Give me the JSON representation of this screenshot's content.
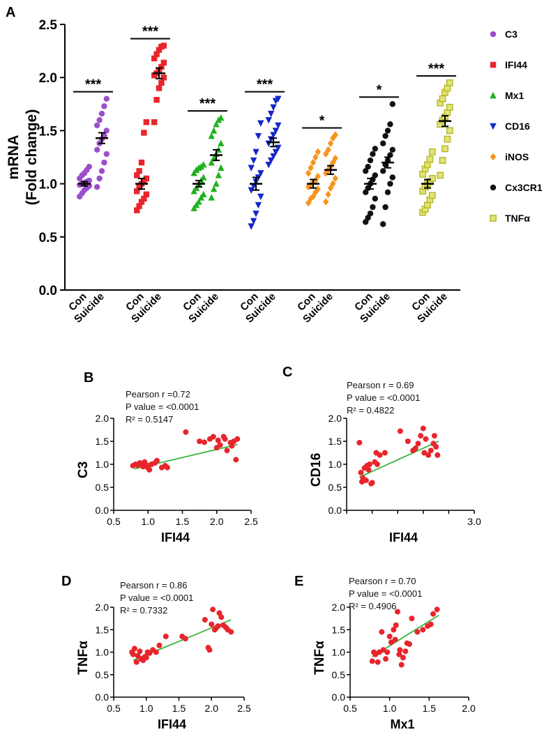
{
  "chart_data": [
    {
      "panel": "A",
      "type": "scatter",
      "title": "",
      "ylabel_line1": "mRNA",
      "ylabel_line2": "(Fold change)",
      "ylim": [
        0,
        2.5
      ],
      "yticks": [
        "0.0",
        "0.5",
        "1.0",
        "1.5",
        "2.0",
        "2.5"
      ],
      "group_labels": [
        "Con",
        "Suicide"
      ],
      "series": [
        {
          "name": "C3",
          "color": "#9b4fc9",
          "marker": "circle",
          "significance": "***",
          "con_mean": 1.0,
          "con_sem": 0.02,
          "suicide_mean": 1.43,
          "suicide_sem": 0.05,
          "con_values": [
            0.88,
            0.91,
            0.94,
            0.96,
            0.98,
            0.99,
            1.0,
            1.01,
            1.02,
            1.03,
            1.05,
            1.08,
            1.1,
            1.13,
            1.16
          ],
          "suicide_values": [
            0.97,
            1.05,
            1.12,
            1.2,
            1.28,
            1.32,
            1.38,
            1.42,
            1.45,
            1.5,
            1.55,
            1.6,
            1.66,
            1.73,
            1.8
          ]
        },
        {
          "name": "IFI44",
          "color": "#e8252b",
          "marker": "square",
          "significance": "***",
          "con_mean": 1.0,
          "con_sem": 0.05,
          "suicide_mean": 2.04,
          "suicide_sem": 0.05,
          "con_values": [
            0.75,
            0.79,
            0.83,
            0.86,
            0.9,
            0.93,
            0.97,
            1.0,
            1.02,
            1.05,
            1.08,
            1.12,
            1.2,
            1.48,
            1.58
          ],
          "suicide_values": [
            1.58,
            1.79,
            1.9,
            1.95,
            2.0,
            2.02,
            2.04,
            2.06,
            2.1,
            2.14,
            2.18,
            2.22,
            2.26,
            2.29,
            2.3
          ]
        },
        {
          "name": "Mx1",
          "color": "#1fb21f",
          "marker": "triangle-up",
          "significance": "***",
          "con_mean": 1.0,
          "con_sem": 0.03,
          "suicide_mean": 1.27,
          "suicide_sem": 0.05,
          "con_values": [
            0.77,
            0.8,
            0.83,
            0.87,
            0.9,
            0.93,
            0.96,
            1.0,
            1.03,
            1.06,
            1.1,
            1.13,
            1.15,
            1.16,
            1.18
          ],
          "suicide_values": [
            0.87,
            0.95,
            1.0,
            1.08,
            1.15,
            1.2,
            1.24,
            1.28,
            1.32,
            1.38,
            1.45,
            1.5,
            1.56,
            1.6,
            1.62
          ]
        },
        {
          "name": "CD16",
          "color": "#1426c8",
          "marker": "triangle-down",
          "significance": "***",
          "con_mean": 1.0,
          "con_sem": 0.06,
          "suicide_mean": 1.39,
          "suicide_sem": 0.04,
          "con_values": [
            0.6,
            0.65,
            0.72,
            0.8,
            0.88,
            0.94,
            0.98,
            1.02,
            1.06,
            1.1,
            1.15,
            1.22,
            1.3,
            1.45,
            1.57
          ],
          "suicide_values": [
            1.18,
            1.22,
            1.26,
            1.3,
            1.34,
            1.38,
            1.42,
            1.46,
            1.5,
            1.55,
            1.6,
            1.66,
            1.72,
            1.78,
            1.8
          ]
        },
        {
          "name": "iNOS",
          "color": "#f7941d",
          "marker": "diamond",
          "significance": "*",
          "con_mean": 1.0,
          "con_sem": 0.04,
          "suicide_mean": 1.13,
          "suicide_sem": 0.04,
          "con_values": [
            0.82,
            0.86,
            0.88,
            0.92,
            0.95,
            0.97,
            0.99,
            1.01,
            1.03,
            1.07,
            1.1,
            1.15,
            1.2,
            1.25,
            1.3
          ],
          "suicide_values": [
            0.83,
            0.9,
            0.96,
            1.0,
            1.05,
            1.1,
            1.13,
            1.16,
            1.2,
            1.24,
            1.28,
            1.32,
            1.38,
            1.43,
            1.46
          ]
        },
        {
          "name": "Cx3CR1",
          "color": "#111111",
          "marker": "circle",
          "significance": "*",
          "con_mean": 1.0,
          "con_sem": 0.05,
          "suicide_mean": 1.2,
          "suicide_sem": 0.05,
          "con_values": [
            0.64,
            0.68,
            0.72,
            0.78,
            0.86,
            0.92,
            0.96,
            1.0,
            1.04,
            1.08,
            1.12,
            1.16,
            1.22,
            1.28,
            1.33
          ],
          "suicide_values": [
            0.62,
            0.78,
            0.92,
            1.0,
            1.06,
            1.12,
            1.18,
            1.22,
            1.27,
            1.32,
            1.38,
            1.45,
            1.5,
            1.56,
            1.75
          ]
        },
        {
          "name": "TNFα",
          "color": "#b5b825",
          "marker": "square-open",
          "significance": "***",
          "con_mean": 1.0,
          "con_sem": 0.04,
          "suicide_mean": 1.59,
          "suicide_sem": 0.05,
          "con_values": [
            0.73,
            0.76,
            0.8,
            0.85,
            0.89,
            0.93,
            0.97,
            1.0,
            1.02,
            1.05,
            1.09,
            1.14,
            1.18,
            1.23,
            1.3
          ],
          "suicide_values": [
            1.08,
            1.22,
            1.33,
            1.42,
            1.5,
            1.56,
            1.6,
            1.63,
            1.67,
            1.72,
            1.76,
            1.8,
            1.86,
            1.9,
            1.95
          ]
        }
      ]
    },
    {
      "panel": "B",
      "type": "scatter",
      "xlabel": "IFI44",
      "ylabel": "C3",
      "xlim": [
        0.5,
        2.5
      ],
      "ylim": [
        0,
        2.0
      ],
      "xticks": [
        "0.5",
        "1.0",
        "1.5",
        "2.0",
        "2.5"
      ],
      "yticks": [
        "0.0",
        "0.5",
        "1.0",
        "1.5",
        "2.0"
      ],
      "stats": [
        "Pearson  r =0.72",
        "P value = <0.0001",
        "R² = 0.5147"
      ],
      "fit": {
        "x": [
          0.8,
          2.3
        ],
        "y": [
          0.9,
          1.43
        ]
      },
      "points": [
        [
          0.78,
          0.97
        ],
        [
          0.82,
          1.0
        ],
        [
          0.85,
          0.98
        ],
        [
          0.88,
          1.03
        ],
        [
          0.9,
          1.0
        ],
        [
          0.93,
          0.95
        ],
        [
          0.95,
          1.05
        ],
        [
          0.98,
          0.98
        ],
        [
          1.0,
          0.92
        ],
        [
          1.02,
          0.88
        ],
        [
          1.05,
          1.0
        ],
        [
          1.1,
          1.03
        ],
        [
          1.13,
          1.08
        ],
        [
          1.2,
          0.93
        ],
        [
          1.25,
          0.97
        ],
        [
          1.28,
          0.93
        ],
        [
          1.55,
          1.7
        ],
        [
          1.75,
          1.5
        ],
        [
          1.82,
          1.48
        ],
        [
          1.9,
          1.55
        ],
        [
          1.95,
          1.6
        ],
        [
          2.0,
          1.36
        ],
        [
          2.02,
          1.52
        ],
        [
          2.05,
          1.42
        ],
        [
          2.1,
          1.6
        ],
        [
          2.12,
          1.55
        ],
        [
          2.15,
          1.3
        ],
        [
          2.2,
          1.47
        ],
        [
          2.22,
          1.4
        ],
        [
          2.25,
          1.5
        ],
        [
          2.28,
          1.1
        ],
        [
          2.3,
          1.55
        ]
      ]
    },
    {
      "panel": "C",
      "type": "scatter",
      "xlabel": "IFI44",
      "ylabel": "CD16",
      "xlim": [
        0.5,
        3.0
      ],
      "ylim": [
        0,
        2.0
      ],
      "xticks": [
        "",
        "",
        "",
        "",
        "",
        "3.0"
      ],
      "yticks": [
        "0.0",
        "0.5",
        "1.0",
        "1.5",
        "2.0"
      ],
      "stats": [
        "Pearson  r = 0.69",
        "P value = <0.0001",
        "R² = 0.4822"
      ],
      "fit": {
        "x": [
          0.75,
          2.3
        ],
        "y": [
          0.72,
          1.5
        ]
      },
      "points": [
        [
          0.75,
          1.47
        ],
        [
          0.78,
          0.82
        ],
        [
          0.8,
          0.62
        ],
        [
          0.82,
          0.7
        ],
        [
          0.85,
          0.92
        ],
        [
          0.88,
          0.65
        ],
        [
          0.9,
          0.97
        ],
        [
          0.93,
          0.88
        ],
        [
          0.95,
          1.0
        ],
        [
          0.98,
          0.58
        ],
        [
          1.0,
          0.6
        ],
        [
          1.05,
          1.05
        ],
        [
          1.08,
          1.25
        ],
        [
          1.1,
          1.0
        ],
        [
          1.15,
          1.2
        ],
        [
          1.25,
          1.25
        ],
        [
          1.55,
          1.72
        ],
        [
          1.7,
          1.5
        ],
        [
          1.8,
          1.3
        ],
        [
          1.85,
          1.35
        ],
        [
          1.9,
          1.45
        ],
        [
          1.95,
          1.62
        ],
        [
          2.0,
          1.78
        ],
        [
          2.02,
          1.25
        ],
        [
          2.05,
          1.55
        ],
        [
          2.1,
          1.2
        ],
        [
          2.15,
          1.3
        ],
        [
          2.2,
          1.45
        ],
        [
          2.22,
          1.62
        ],
        [
          2.25,
          1.38
        ],
        [
          2.28,
          1.2
        ]
      ]
    },
    {
      "panel": "D",
      "type": "scatter",
      "xlabel": "IFI44",
      "ylabel": "TNFα",
      "xlim": [
        0.5,
        2.5
      ],
      "ylim": [
        0,
        2.0
      ],
      "xticks": [
        "0.5",
        "1.0",
        "1.5",
        "2.0",
        "2.5"
      ],
      "yticks": [
        "0.0",
        "0.5",
        "1.0",
        "1.5",
        "2.0"
      ],
      "stats": [
        "Pearson  r = 0.86",
        "P value = <0.0001",
        "R² = 0.7332"
      ],
      "fit": {
        "x": [
          0.8,
          2.3
        ],
        "y": [
          0.82,
          1.72
        ]
      },
      "points": [
        [
          0.78,
          1.0
        ],
        [
          0.8,
          0.95
        ],
        [
          0.82,
          1.08
        ],
        [
          0.85,
          0.78
        ],
        [
          0.87,
          0.92
        ],
        [
          0.9,
          1.02
        ],
        [
          0.92,
          0.85
        ],
        [
          0.95,
          0.82
        ],
        [
          0.98,
          0.9
        ],
        [
          1.0,
          0.88
        ],
        [
          1.02,
          1.0
        ],
        [
          1.05,
          0.98
        ],
        [
          1.1,
          1.05
        ],
        [
          1.15,
          1.0
        ],
        [
          1.2,
          1.15
        ],
        [
          1.3,
          1.35
        ],
        [
          1.55,
          1.35
        ],
        [
          1.6,
          1.3
        ],
        [
          1.9,
          1.72
        ],
        [
          1.95,
          1.1
        ],
        [
          1.97,
          1.05
        ],
        [
          2.0,
          1.62
        ],
        [
          2.02,
          1.95
        ],
        [
          2.05,
          1.5
        ],
        [
          2.08,
          1.55
        ],
        [
          2.1,
          1.58
        ],
        [
          2.12,
          1.87
        ],
        [
          2.15,
          1.78
        ],
        [
          2.18,
          1.6
        ],
        [
          2.22,
          1.55
        ],
        [
          2.25,
          1.5
        ],
        [
          2.3,
          1.45
        ]
      ]
    },
    {
      "panel": "E",
      "type": "scatter",
      "xlabel": "Mx1",
      "ylabel": "TNFα",
      "xlim": [
        0.5,
        2.0
      ],
      "ylim": [
        0,
        2.0
      ],
      "xticks": [
        "0.5",
        "1.0",
        "1.5",
        "2.0"
      ],
      "yticks": [
        "0.0",
        "0.5",
        "1.0",
        "1.5",
        "2.0"
      ],
      "stats": [
        "Pearson  r = 0.70",
        "P value = <0.0001",
        "R² = 0.4906"
      ],
      "fit": {
        "x": [
          0.78,
          1.62
        ],
        "y": [
          0.9,
          1.82
        ]
      },
      "points": [
        [
          0.78,
          0.8
        ],
        [
          0.8,
          1.0
        ],
        [
          0.82,
          0.95
        ],
        [
          0.85,
          0.78
        ],
        [
          0.87,
          1.0
        ],
        [
          0.9,
          1.45
        ],
        [
          0.92,
          1.05
        ],
        [
          0.95,
          0.85
        ],
        [
          0.97,
          1.0
        ],
        [
          1.0,
          1.35
        ],
        [
          1.02,
          1.22
        ],
        [
          1.05,
          1.5
        ],
        [
          1.07,
          1.28
        ],
        [
          1.08,
          1.6
        ],
        [
          1.1,
          1.9
        ],
        [
          1.12,
          0.95
        ],
        [
          1.13,
          1.05
        ],
        [
          1.15,
          0.72
        ],
        [
          1.17,
          0.88
        ],
        [
          1.2,
          1.02
        ],
        [
          1.22,
          1.2
        ],
        [
          1.25,
          1.18
        ],
        [
          1.28,
          1.75
        ],
        [
          1.35,
          1.45
        ],
        [
          1.42,
          1.5
        ],
        [
          1.48,
          1.58
        ],
        [
          1.52,
          1.62
        ],
        [
          1.55,
          1.85
        ],
        [
          1.6,
          1.95
        ]
      ]
    }
  ]
}
